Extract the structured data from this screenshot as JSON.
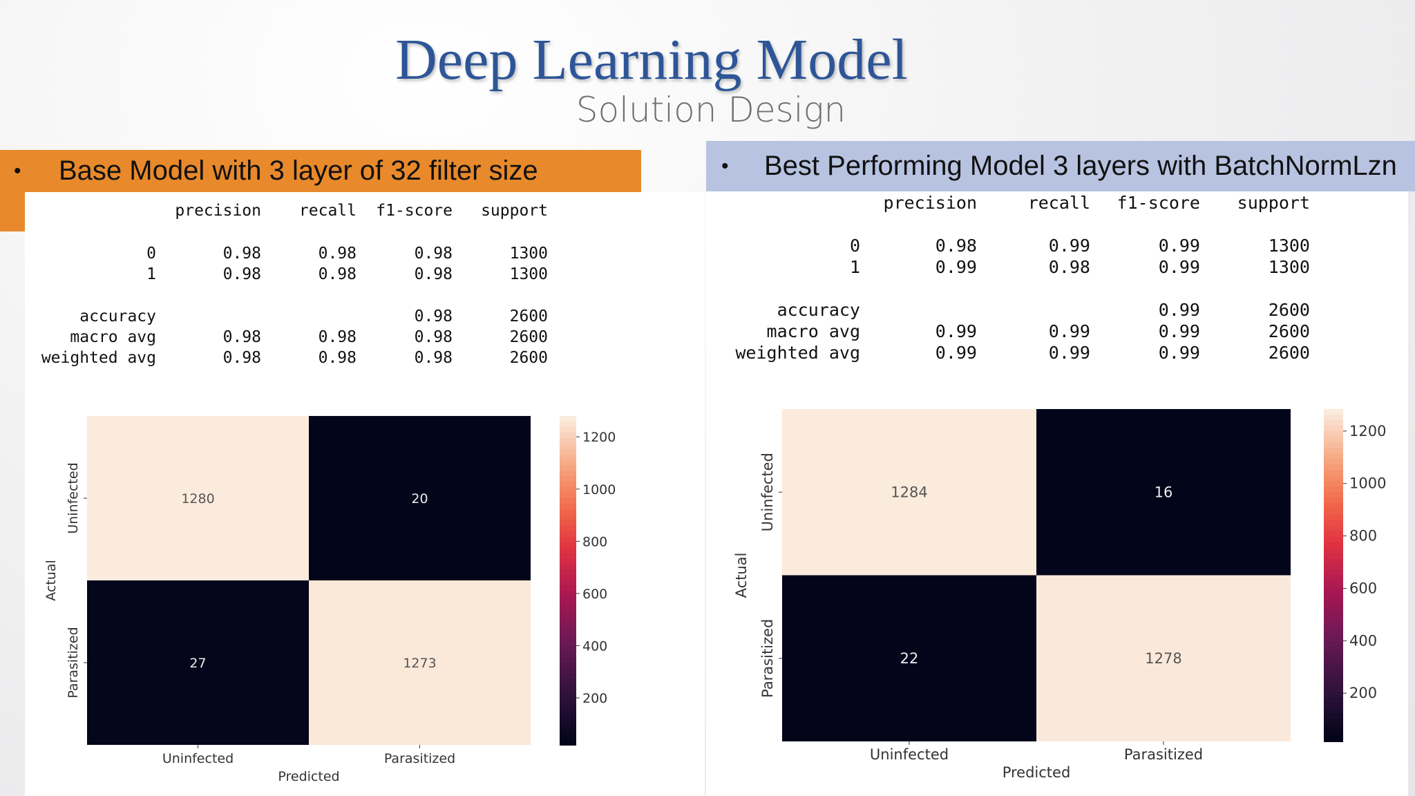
{
  "title": "Deep Learning Model",
  "subtitle": "Solution Design",
  "left_banner": {
    "bullet": "•",
    "text": "Base Model with 3 layer of 32 filter size"
  },
  "right_banner": {
    "bullet": "•",
    "text": "Best Performing Model 3 layers with BatchNormLzn"
  },
  "report_headers": [
    "precision",
    "recall",
    "f1-score",
    "support"
  ],
  "left_report": {
    "rows": [
      {
        "label": "0",
        "values": [
          "0.98",
          "0.98",
          "0.98",
          "1300"
        ]
      },
      {
        "label": "1",
        "values": [
          "0.98",
          "0.98",
          "0.98",
          "1300"
        ]
      },
      {
        "label": "accuracy",
        "values": [
          "",
          "",
          "0.98",
          "2600"
        ]
      },
      {
        "label": "macro avg",
        "values": [
          "0.98",
          "0.98",
          "0.98",
          "2600"
        ]
      },
      {
        "label": "weighted avg",
        "values": [
          "0.98",
          "0.98",
          "0.98",
          "2600"
        ]
      }
    ]
  },
  "right_report": {
    "rows": [
      {
        "label": "0",
        "values": [
          "0.98",
          "0.99",
          "0.99",
          "1300"
        ]
      },
      {
        "label": "1",
        "values": [
          "0.99",
          "0.98",
          "0.99",
          "1300"
        ]
      },
      {
        "label": "accuracy",
        "values": [
          "",
          "",
          "0.99",
          "2600"
        ]
      },
      {
        "label": "macro avg",
        "values": [
          "0.99",
          "0.99",
          "0.99",
          "2600"
        ]
      },
      {
        "label": "weighted avg",
        "values": [
          "0.99",
          "0.99",
          "0.99",
          "2600"
        ]
      }
    ]
  },
  "chart_data": [
    {
      "type": "heatmap",
      "rows": [
        "Uninfected",
        "Parasitized"
      ],
      "columns": [
        "Uninfected",
        "Parasitized"
      ],
      "values": [
        [
          1280,
          20
        ],
        [
          27,
          1273
        ]
      ],
      "xlabel": "Predicted",
      "ylabel": "Actual",
      "colorbar_ticks": [
        200,
        400,
        600,
        800,
        1000,
        1200
      ],
      "vmin": 20,
      "vmax": 1280
    },
    {
      "type": "heatmap",
      "rows": [
        "Uninfected",
        "Parasitized"
      ],
      "columns": [
        "Uninfected",
        "Parasitized"
      ],
      "values": [
        [
          1284,
          16
        ],
        [
          22,
          1278
        ]
      ],
      "xlabel": "Predicted",
      "ylabel": "Actual",
      "colorbar_ticks": [
        200,
        400,
        600,
        800,
        1000,
        1200
      ],
      "vmin": 16,
      "vmax": 1284
    }
  ]
}
